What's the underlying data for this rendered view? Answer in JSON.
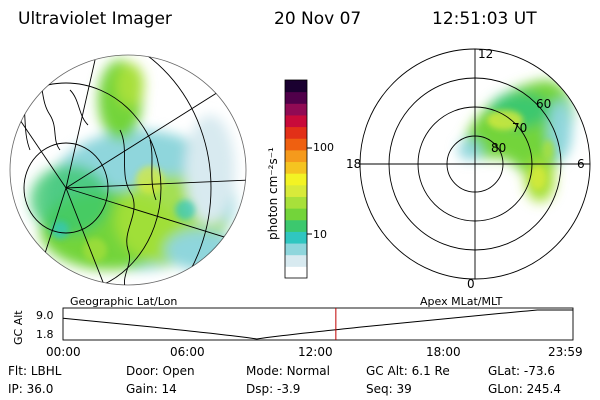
{
  "header": {
    "title": "Ultraviolet Imager",
    "date": "20 Nov 07",
    "time": "12:51:03 UT"
  },
  "colorbar": {
    "unit_label": "photon cm⁻²s⁻¹",
    "ticks": [
      "100",
      "10"
    ],
    "colors": [
      "#ffffff",
      "#d8eaf0",
      "#8fd6dc",
      "#30c6c0",
      "#3cc86e",
      "#73d43a",
      "#a8e03a",
      "#d8ea3a",
      "#f3f324",
      "#f5c420",
      "#f59a1c",
      "#ef6010",
      "#e23018",
      "#c80a3a",
      "#900a54",
      "#50004a",
      "#1a0030"
    ]
  },
  "left_panel": {
    "caption": "Geographic Lat/Lon"
  },
  "right_panel": {
    "caption": "Apex MLat/MLT",
    "mlt_labels": {
      "top": "12",
      "left": "18",
      "right": "6",
      "bottom": "0"
    },
    "mlat_labels": [
      "60",
      "70",
      "80"
    ]
  },
  "timeline": {
    "axis_label": "GC Alt",
    "y_ticks": [
      "9.0",
      "1.8"
    ],
    "x_ticks": [
      "00:00",
      "06:00",
      "12:00",
      "18:00",
      "23:59"
    ],
    "current_time_fraction": 0.535
  },
  "status": {
    "row1": [
      {
        "label": "Flt:",
        "value": "LBHL"
      },
      {
        "label": "Door:",
        "value": "Open"
      },
      {
        "label": "Mode:",
        "value": "Normal"
      },
      {
        "label": "GC Alt:",
        "value": "6.1 Re"
      },
      {
        "label": "GLat:",
        "value": "-73.6"
      }
    ],
    "row2": [
      {
        "label": "IP:",
        "value": "36.0"
      },
      {
        "label": "Gain:",
        "value": "14"
      },
      {
        "label": "Dsp:",
        "value": "-3.9"
      },
      {
        "label": "Seq:",
        "value": "39"
      },
      {
        "label": "GLon:",
        "value": "245.4"
      }
    ]
  }
}
